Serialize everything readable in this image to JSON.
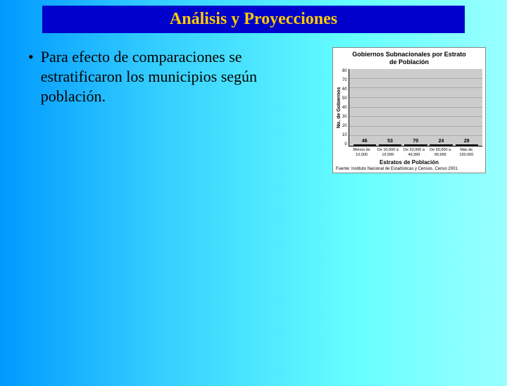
{
  "title": "Análisis y Proyecciones",
  "bullet": {
    "marker": "•",
    "text": "Para efecto de comparaciones se estratificaron los municipios según población."
  },
  "chart": {
    "type": "bar",
    "title_line1": "Gobiernos Subnacionales por Estrato",
    "title_line2": "de Población",
    "y_label": "No. de Gobiernos",
    "x_label": "Estratos de Población",
    "ylim": [
      0,
      80
    ],
    "ytick_step": 10,
    "yticks": [
      "80",
      "70",
      "60",
      "50",
      "40",
      "30",
      "20",
      "10",
      "0"
    ],
    "categories": [
      "Menos de 10,000",
      "De 10,000 a 19,999",
      "De 20,000 a 49,999",
      "De 50,000 a 99,999",
      "Más de 100,000"
    ],
    "values": [
      46,
      53,
      70,
      24,
      28
    ],
    "bar_color": "#9999ff",
    "bar_border": "#000000",
    "plot_bg": "#cccccc",
    "grid_color": "#aaaaaa",
    "title_fontsize": 9,
    "label_fontsize": 8,
    "tick_fontsize": 6,
    "source": "Fuente: Instituto Nacional de Estadísticas y Censos.  Censo 2001"
  },
  "colors": {
    "title_bg": "#0000cc",
    "title_fg": "#ffcc00",
    "slide_bg_from": "#0099ff",
    "slide_bg_to": "#99ffff"
  }
}
